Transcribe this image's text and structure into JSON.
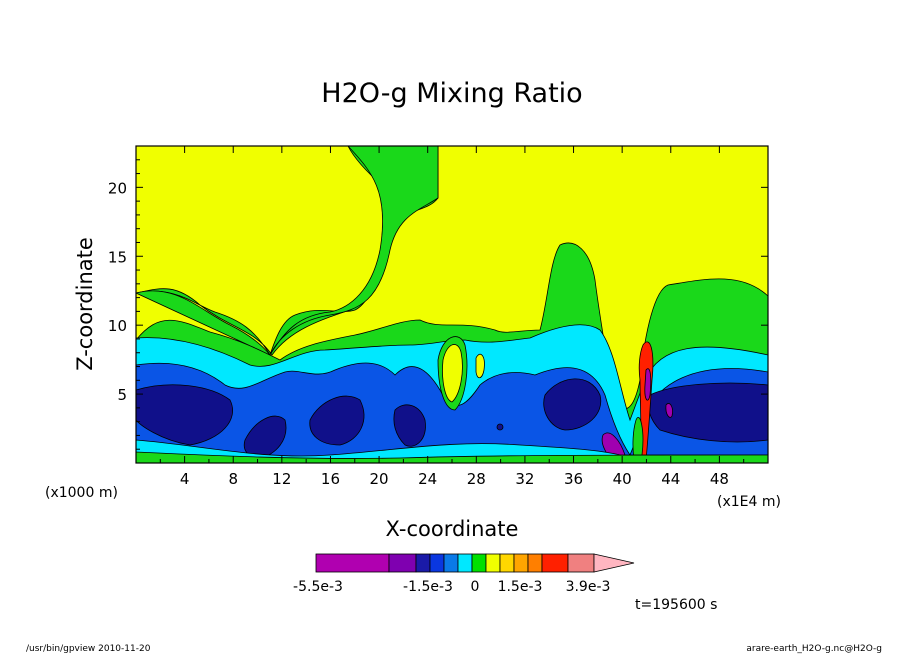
{
  "chart_data": {
    "type": "contour",
    "title": "H2O-g Mixing Ratio",
    "xlabel": "X-coordinate",
    "ylabel": "Z-coordinate",
    "x_tick_labels": [
      "4",
      "8",
      "12",
      "16",
      "20",
      "24",
      "28",
      "32",
      "36",
      "40",
      "44",
      "48"
    ],
    "y_tick_labels": [
      "5",
      "10",
      "15",
      "20"
    ],
    "x_unit_left": "(x1000 m)",
    "x_unit_right": "(x1E4 m)",
    "xlim": [
      0,
      52
    ],
    "ylim": [
      0,
      23
    ],
    "time_label": "t=195600 s",
    "colorbar": {
      "labels": [
        "-5.5e-3",
        "-1.5e-3",
        "0",
        "1.5e-3",
        "3.9e-3"
      ],
      "colors": [
        "#b000b0",
        "#7f00b0",
        "#1a1aa8",
        "#0a37e0",
        "#0a7ae8",
        "#00e8ff",
        "#00e000",
        "#f0ff00",
        "#ffd700",
        "#ffa500",
        "#ff7f00",
        "#ff2000",
        "#f08080",
        "#ffb6c1"
      ]
    },
    "contour_fill_colors": {
      "top": "#f0ff00",
      "upper": "#1ad81a",
      "middle": "#00e8ff",
      "lower": "#0a55e6",
      "core": "#10108a",
      "negative": "#a000b0"
    }
  },
  "footer": {
    "left": "/usr/bin/gpview  2010-11-20",
    "right": "arare-earth_H2O-g.nc@H2O-g"
  }
}
